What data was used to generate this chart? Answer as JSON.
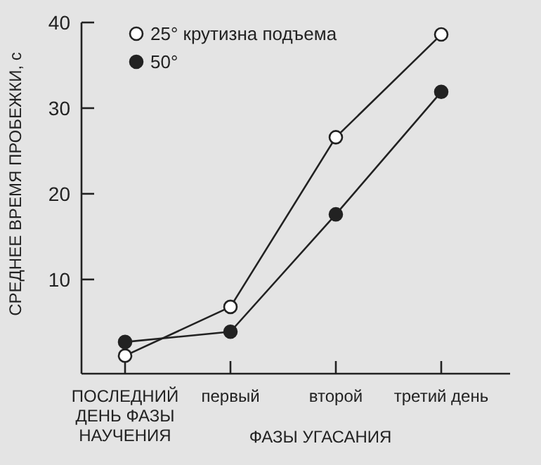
{
  "chart_data": {
    "type": "line",
    "ylabel": "СРЕДНЕЕ ВРЕМЯ ПРОБЕЖКИ, с",
    "xlabel": "ФАЗЫ УГАСАНИЯ",
    "categories": [
      "ПОСЛЕДНИЙ ДЕНЬ ФАЗЫ НАУЧЕНИЯ",
      "первый",
      "второй",
      "третий день"
    ],
    "series": [
      {
        "name": "25° крутизна подъема",
        "color": "#ffffff",
        "values": [
          1.1,
          6.8,
          26.6,
          38.6
        ]
      },
      {
        "name": "50°",
        "color": "#222222",
        "values": [
          2.7,
          3.9,
          17.6,
          31.9
        ]
      }
    ],
    "ylim": [
      -1,
      40
    ],
    "yticks": [
      10,
      20,
      30,
      40
    ],
    "marker": "circle",
    "line_style": "solid",
    "legend": "top left",
    "grid": false
  }
}
